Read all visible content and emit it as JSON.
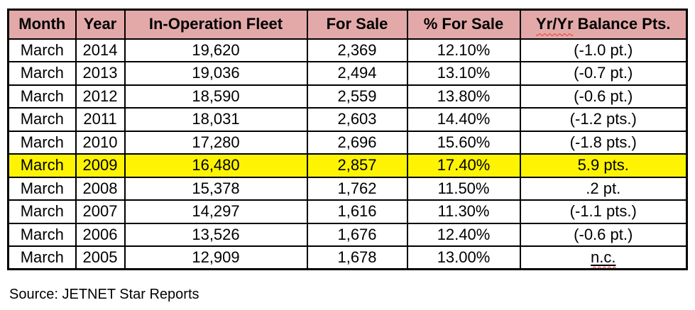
{
  "colors": {
    "header_bg": "#e3a9a9",
    "highlight_bg": "#fdf303",
    "negative_text": "#f2362a",
    "border": "#000000"
  },
  "table": {
    "columns": [
      {
        "id": "month",
        "label": "Month"
      },
      {
        "id": "year",
        "label": "Year"
      },
      {
        "id": "fleet",
        "label": "In-Operation Fleet"
      },
      {
        "id": "for-sale",
        "label": "For Sale"
      },
      {
        "id": "pct-for-sale",
        "label": "% For Sale"
      },
      {
        "id": "balance",
        "label": "Yr/Yr Balance Pts.",
        "spellcheck_part": "Yr/Yr",
        "rest": "Balance Pts."
      }
    ],
    "rows": [
      {
        "month": "March",
        "year": "2014",
        "fleet": "19,620",
        "for_sale": "2,369",
        "pct_for_sale": "12.10%",
        "balance": "(-1.0 pt.)",
        "balance_style": "negative",
        "highlight": false
      },
      {
        "month": "March",
        "year": "2013",
        "fleet": "19,036",
        "for_sale": "2,494",
        "pct_for_sale": "13.10%",
        "balance": "(-0.7 pt.)",
        "balance_style": "negative",
        "highlight": false
      },
      {
        "month": "March",
        "year": "2012",
        "fleet": "18,590",
        "for_sale": "2,559",
        "pct_for_sale": "13.80%",
        "balance": "(-0.6 pt.)",
        "balance_style": "negative",
        "highlight": false
      },
      {
        "month": "March",
        "year": "2011",
        "fleet": "18,031",
        "for_sale": "2,603",
        "pct_for_sale": "14.40%",
        "balance": "(-1.2 pts.)",
        "balance_style": "negative",
        "highlight": false
      },
      {
        "month": "March",
        "year": "2010",
        "fleet": "17,280",
        "for_sale": "2,696",
        "pct_for_sale": "15.60%",
        "balance": "(-1.8 pts.)",
        "balance_style": "negative",
        "highlight": false
      },
      {
        "month": "March",
        "year": "2009",
        "fleet": "16,480",
        "for_sale": "2,857",
        "pct_for_sale": "17.40%",
        "balance": "5.9 pts.",
        "balance_style": "bold",
        "highlight": true
      },
      {
        "month": "March",
        "year": "2008",
        "fleet": "15,378",
        "for_sale": "1,762",
        "pct_for_sale": "11.50%",
        "balance": ".2 pt.",
        "balance_style": "bold",
        "highlight": false
      },
      {
        "month": "March",
        "year": "2007",
        "fleet": "14,297",
        "for_sale": "1,616",
        "pct_for_sale": "11.30%",
        "balance": "(-1.1 pts.)",
        "balance_style": "negative",
        "highlight": false
      },
      {
        "month": "March",
        "year": "2006",
        "fleet": "13,526",
        "for_sale": "1,676",
        "pct_for_sale": "12.40%",
        "balance": "(-0.6 pt.)",
        "balance_style": "negative",
        "highlight": false
      },
      {
        "month": "March",
        "year": "2005",
        "fleet": "12,909",
        "for_sale": "1,678",
        "pct_for_sale": "13.00%",
        "balance": "n.c.",
        "balance_style": "nc",
        "highlight": false
      }
    ]
  },
  "footer": {
    "source": "Source: JETNET Star Reports"
  },
  "chart_data": {
    "type": "table",
    "title": "",
    "columns": [
      "Month",
      "Year",
      "In-Operation Fleet",
      "For Sale",
      "% For Sale",
      "Yr/Yr Balance Pts."
    ],
    "rows": [
      [
        "March",
        2014,
        19620,
        2369,
        "12.10%",
        "(-1.0 pt.)"
      ],
      [
        "March",
        2013,
        19036,
        2494,
        "13.10%",
        "(-0.7 pt.)"
      ],
      [
        "March",
        2012,
        18590,
        2559,
        "13.80%",
        "(-0.6 pt.)"
      ],
      [
        "March",
        2011,
        18031,
        2603,
        "14.40%",
        "(-1.2 pts.)"
      ],
      [
        "March",
        2010,
        17280,
        2696,
        "15.60%",
        "(-1.8 pts.)"
      ],
      [
        "March",
        2009,
        16480,
        2857,
        "17.40%",
        "5.9 pts."
      ],
      [
        "March",
        2008,
        15378,
        1762,
        "11.50%",
        ".2 pt."
      ],
      [
        "March",
        2007,
        14297,
        1616,
        "11.30%",
        "(-1.1 pts.)"
      ],
      [
        "March",
        2006,
        13526,
        1676,
        "12.40%",
        "(-0.6 pt.)"
      ],
      [
        "March",
        2005,
        12909,
        1678,
        "13.00%",
        "n.c."
      ]
    ],
    "highlighted_row_year": 2009,
    "source": "Source: JETNET Star Reports"
  }
}
